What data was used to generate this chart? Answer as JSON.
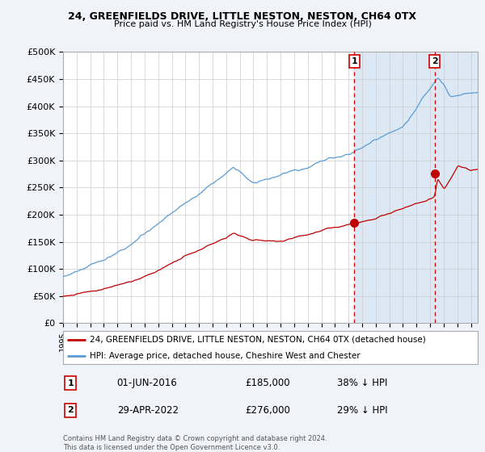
{
  "title1": "24, GREENFIELDS DRIVE, LITTLE NESTON, NESTON, CH64 0TX",
  "title2": "Price paid vs. HM Land Registry's House Price Index (HPI)",
  "ylabel_ticks": [
    "£0",
    "£50K",
    "£100K",
    "£150K",
    "£200K",
    "£250K",
    "£300K",
    "£350K",
    "£400K",
    "£450K",
    "£500K"
  ],
  "ytick_values": [
    0,
    50000,
    100000,
    150000,
    200000,
    250000,
    300000,
    350000,
    400000,
    450000,
    500000
  ],
  "hpi_color": "#5b9bd5",
  "price_color": "#c00000",
  "shade_color": "#dce9f5",
  "marker1_year": 2016.42,
  "marker1_price": 185000,
  "marker2_year": 2022.33,
  "marker2_price": 276000,
  "annotation1": [
    "1",
    "01-JUN-2016",
    "£185,000",
    "38% ↓ HPI"
  ],
  "annotation2": [
    "2",
    "29-APR-2022",
    "£276,000",
    "29% ↓ HPI"
  ],
  "legend1": "24, GREENFIELDS DRIVE, LITTLE NESTON, NESTON, CH64 0TX (detached house)",
  "legend2": "HPI: Average price, detached house, Cheshire West and Chester",
  "footnote": "Contains HM Land Registry data © Crown copyright and database right 2024.\nThis data is licensed under the Open Government Licence v3.0.",
  "bg_color": "#f0f4fa",
  "plot_bg": "#ffffff",
  "grid_color": "#cccccc",
  "dashed_line_color": "#cc0000",
  "xmin": 1995,
  "xmax": 2025.5
}
